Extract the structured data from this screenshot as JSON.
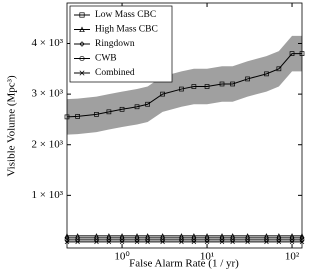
{
  "chart_data": {
    "type": "line",
    "x_label": "False Alarm Rate (1 / yr)",
    "y_label": "Visible Volume (Mpc³)",
    "xlog": true,
    "xlim": [
      0.225,
      131
    ],
    "ylim": [
      -40,
      4800
    ],
    "xticks": [
      {
        "value": 1,
        "label": "10⁰"
      },
      {
        "value": 10,
        "label": "10¹"
      },
      {
        "value": 100,
        "label": "10²"
      }
    ],
    "yticks": [
      {
        "value": 1000,
        "label": "1 × 10³"
      },
      {
        "value": 2000,
        "label": "2 × 10³"
      },
      {
        "value": 3000,
        "label": "3 × 10³"
      },
      {
        "value": 4000,
        "label": "4 × 10³"
      }
    ],
    "legend": "upper left",
    "x": [
      0.225,
      0.3,
      0.5,
      0.7,
      1,
      1.5,
      2,
      3,
      5,
      7,
      10,
      15,
      20,
      30,
      50,
      70,
      100,
      131
    ],
    "series": [
      {
        "name": "Low Mass CBC",
        "marker": "square",
        "color": "#000000",
        "values": [
          2550,
          2560,
          2600,
          2650,
          2700,
          2750,
          2800,
          3000,
          3100,
          3150,
          3150,
          3200,
          3200,
          3300,
          3400,
          3500,
          3800,
          3800
        ],
        "band": {
          "color": "#a0a0a0",
          "lower": [
            2200,
            2210,
            2250,
            2300,
            2350,
            2400,
            2450,
            2650,
            2750,
            2800,
            2800,
            2850,
            2850,
            2950,
            3050,
            3150,
            3450,
            3450
          ],
          "upper": [
            2900,
            2910,
            2950,
            3000,
            3050,
            3100,
            3150,
            3350,
            3450,
            3500,
            3500,
            3550,
            3550,
            3650,
            3750,
            3850,
            4150,
            4150
          ]
        }
      },
      {
        "name": "High Mass CBC",
        "marker": "triangle",
        "color": "#000000",
        "values": [
          200,
          200,
          200,
          200,
          200,
          200,
          200,
          200,
          200,
          200,
          200,
          200,
          200,
          200,
          200,
          200,
          200,
          200
        ]
      },
      {
        "name": "Ringdown",
        "marker": "diamond",
        "color": "#000000",
        "values": [
          160,
          160,
          160,
          160,
          160,
          160,
          160,
          160,
          160,
          160,
          160,
          160,
          160,
          160,
          160,
          160,
          160,
          160
        ]
      },
      {
        "name": "CWB",
        "marker": "circle",
        "color": "#000000",
        "values": [
          120,
          120,
          120,
          120,
          120,
          120,
          120,
          120,
          120,
          120,
          120,
          120,
          120,
          120,
          120,
          120,
          120,
          120
        ]
      },
      {
        "name": "Combined",
        "marker": "x",
        "color": "#000000",
        "values": [
          80,
          80,
          80,
          80,
          80,
          80,
          80,
          80,
          80,
          80,
          80,
          80,
          80,
          80,
          80,
          80,
          80,
          80
        ]
      }
    ]
  }
}
